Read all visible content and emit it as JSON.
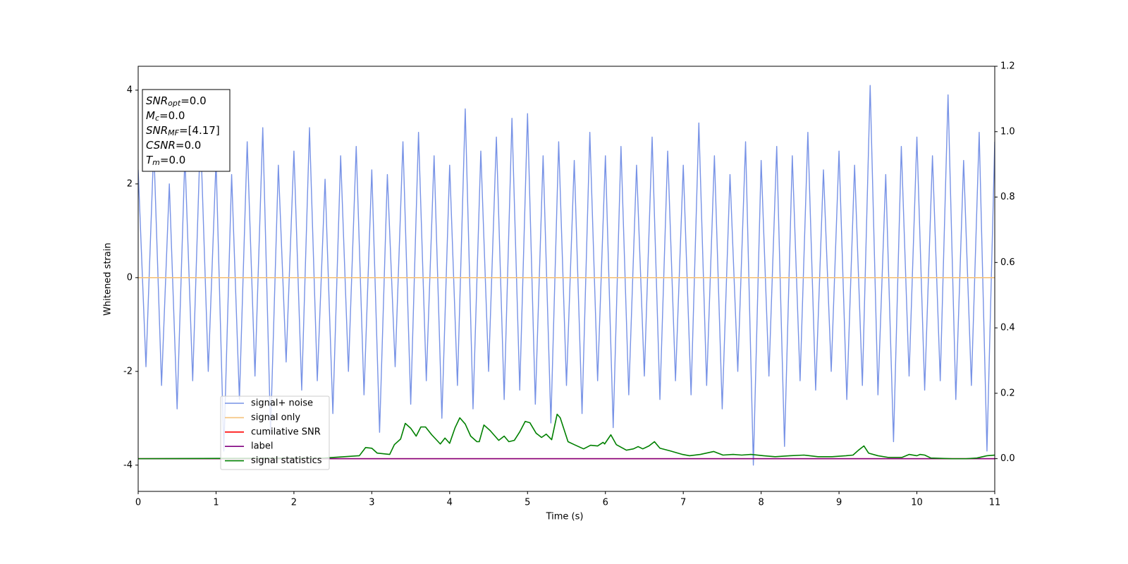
{
  "chart_data": {
    "type": "line",
    "xlabel": "Time (s)",
    "ylabel": "Whitened strain",
    "xlim": [
      0,
      11
    ],
    "xticks": [
      0,
      1,
      2,
      3,
      4,
      5,
      6,
      7,
      8,
      9,
      10,
      11
    ],
    "ylim": [
      -4.56,
      4.51
    ],
    "yticks": [
      -4,
      -2,
      0,
      2,
      4
    ],
    "y2lim": [
      -0.1,
      1.2
    ],
    "y2ticks": [
      {
        "value": 0,
        "label": "0.0"
      },
      {
        "value": 0.2,
        "label": "0.2"
      },
      {
        "value": 0.4,
        "label": "0.4"
      },
      {
        "value": 0.6,
        "label": "0.6"
      },
      {
        "value": 0.8,
        "label": "0.8"
      },
      {
        "value": 1,
        "label": "1.0"
      },
      {
        "value": 1.2,
        "label": "1.2"
      }
    ],
    "legend": "lower left",
    "series": [
      {
        "name": "signal+ noise",
        "color": "#7792e6",
        "x": [
          0,
          0.1,
          0.2,
          0.3,
          0.4,
          0.5,
          0.6,
          0.7,
          0.8,
          0.9,
          1,
          1.1,
          1.2,
          1.3,
          1.4,
          1.5,
          1.6,
          1.7,
          1.8,
          1.9,
          2,
          2.1,
          2.2,
          2.3,
          2.4,
          2.5,
          2.6,
          2.7,
          2.8,
          2.9,
          3,
          3.1,
          3.2,
          3.3,
          3.4,
          3.5,
          3.6,
          3.7,
          3.8,
          3.9,
          4,
          4.1,
          4.2,
          4.3,
          4.4,
          4.5,
          4.6,
          4.7,
          4.8,
          4.9,
          5,
          5.1,
          5.2,
          5.3,
          5.4,
          5.5,
          5.6,
          5.7,
          5.8,
          5.9,
          6,
          6.1,
          6.2,
          6.3,
          6.4,
          6.5,
          6.6,
          6.7,
          6.8,
          6.9,
          7,
          7.1,
          7.2,
          7.3,
          7.4,
          7.5,
          7.6,
          7.7,
          7.8,
          7.9,
          8,
          8.1,
          8.2,
          8.3,
          8.4,
          8.5,
          8.6,
          8.7,
          8.8,
          8.9,
          9,
          9.1,
          9.2,
          9.3,
          9.4,
          9.5,
          9.6,
          9.7,
          9.8,
          9.9,
          10,
          10.1,
          10.2,
          10.3,
          10.4,
          10.5,
          10.6,
          10.7,
          10.8,
          10.9,
          11
        ],
        "values": [
          2.3,
          -1.9,
          2.8,
          -2.3,
          2.0,
          -2.8,
          2.6,
          -2.2,
          3.1,
          -2.0,
          2.5,
          -3.7,
          2.2,
          -2.6,
          2.9,
          -2.1,
          3.2,
          -3.3,
          2.4,
          -1.8,
          2.7,
          -2.4,
          3.2,
          -2.2,
          2.1,
          -2.9,
          2.6,
          -2.0,
          2.8,
          -2.5,
          2.3,
          -3.3,
          2.2,
          -1.9,
          2.9,
          -2.7,
          3.1,
          -2.2,
          2.6,
          -3.0,
          2.4,
          -2.3,
          3.6,
          -2.8,
          2.7,
          -2.0,
          3.0,
          -2.6,
          3.4,
          -2.4,
          3.5,
          -2.7,
          2.6,
          -3.1,
          2.9,
          -2.3,
          2.5,
          -2.9,
          3.1,
          -2.2,
          2.6,
          -3.2,
          2.8,
          -2.5,
          2.4,
          -2.1,
          3.0,
          -2.6,
          2.7,
          -2.2,
          2.4,
          -2.5,
          3.3,
          -2.3,
          2.6,
          -2.8,
          2.2,
          -2.0,
          2.9,
          -4.0,
          2.5,
          -2.1,
          2.8,
          -3.6,
          2.6,
          -2.2,
          3.1,
          -2.4,
          2.3,
          -2.0,
          2.7,
          -2.6,
          2.4,
          -2.3,
          4.1,
          -2.5,
          2.2,
          -3.5,
          2.8,
          -2.1,
          3.0,
          -2.4,
          2.6,
          -2.2,
          3.9,
          -2.6,
          2.5,
          -2.3,
          3.1,
          -3.7,
          2.9
        ]
      },
      {
        "name": "signal only",
        "color": "#f5c27a",
        "x": [
          0,
          11
        ],
        "values": [
          0,
          0
        ]
      },
      {
        "name": "cumilative SNR",
        "color": "#ff0000",
        "axis": "y2",
        "x": [
          0,
          11
        ],
        "values": [
          0,
          0
        ]
      },
      {
        "name": "label",
        "color": "#800080",
        "axis": "y2",
        "x": [
          0,
          11
        ],
        "values": [
          0,
          0
        ]
      },
      {
        "name": "signal statistics",
        "color": "#008000",
        "axis": "y2",
        "x": [
          0,
          2.39,
          2.84,
          2.92,
          3.0,
          3.07,
          3.23,
          3.29,
          3.37,
          3.43,
          3.5,
          3.57,
          3.63,
          3.69,
          3.77,
          3.88,
          3.94,
          4.0,
          4.07,
          4.13,
          4.2,
          4.27,
          4.35,
          4.38,
          4.44,
          4.52,
          4.63,
          4.7,
          4.76,
          4.83,
          4.9,
          4.97,
          5.03,
          5.11,
          5.18,
          5.24,
          5.31,
          5.38,
          5.42,
          5.52,
          5.6,
          5.72,
          5.81,
          5.9,
          5.97,
          5.99,
          6.07,
          6.14,
          6.27,
          6.36,
          6.42,
          6.48,
          6.56,
          6.63,
          6.7,
          6.83,
          6.99,
          7.08,
          7.22,
          7.39,
          7.51,
          7.64,
          7.75,
          7.87,
          8.03,
          8.18,
          8.37,
          8.55,
          8.73,
          8.91,
          9.09,
          9.18,
          9.25,
          9.32,
          9.38,
          9.5,
          9.63,
          9.81,
          9.9,
          10.0,
          10.04,
          10.1,
          10.18,
          10.45,
          10.63,
          10.77,
          10.9,
          11.0
        ],
        "values": [
          0,
          0.002,
          0.009,
          0.034,
          0.032,
          0.017,
          0.013,
          0.043,
          0.06,
          0.108,
          0.093,
          0.069,
          0.097,
          0.097,
          0.073,
          0.045,
          0.063,
          0.047,
          0.095,
          0.125,
          0.106,
          0.069,
          0.052,
          0.052,
          0.103,
          0.086,
          0.056,
          0.069,
          0.052,
          0.056,
          0.082,
          0.114,
          0.11,
          0.078,
          0.065,
          0.075,
          0.058,
          0.136,
          0.125,
          0.052,
          0.043,
          0.03,
          0.041,
          0.039,
          0.05,
          0.045,
          0.073,
          0.043,
          0.026,
          0.03,
          0.037,
          0.03,
          0.039,
          0.052,
          0.032,
          0.024,
          0.013,
          0.009,
          0.013,
          0.022,
          0.011,
          0.013,
          0.011,
          0.013,
          0.009,
          0.006,
          0.009,
          0.011,
          0.006,
          0.006,
          0.009,
          0.011,
          0.026,
          0.039,
          0.017,
          0.009,
          0.004,
          0.004,
          0.013,
          0.009,
          0.013,
          0.011,
          0.002,
          0,
          0,
          0.002,
          0.009,
          0.011
        ]
      }
    ],
    "annotation": [
      {
        "base": "SNR",
        "sub": "opt",
        "text": "=0.0"
      },
      {
        "base": "M",
        "sub": "c",
        "text": "=0.0"
      },
      {
        "base": "SNR",
        "sub": "MF",
        "text": "=[4.17]"
      },
      {
        "base": "CSNR",
        "sub": null,
        "text": "=0.0"
      },
      {
        "base": "T",
        "sub": "m",
        "text": "=0.0"
      }
    ]
  }
}
